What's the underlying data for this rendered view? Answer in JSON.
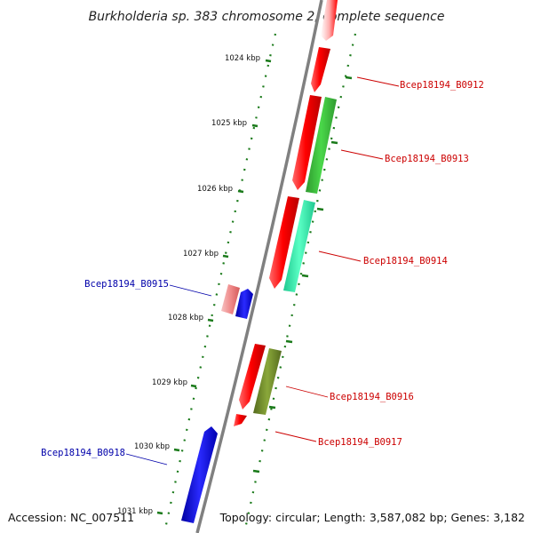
{
  "title": "Burkholderia sp. 383 chromosome 2, complete sequence",
  "footer": {
    "accession": "Accession: NC_007511",
    "topology": "Topology: circular; Length: 3,587,082 bp; Genes: 3,182"
  },
  "colors": {
    "backbone": "#808080",
    "tick": "#1a7a1a",
    "label_forward": "#cc0000",
    "label_reverse": "#0000aa"
  },
  "ruler": [
    {
      "label": "1024 kbp"
    },
    {
      "label": "1025 kbp"
    },
    {
      "label": "1026 kbp"
    },
    {
      "label": "1027 kbp"
    },
    {
      "label": "1028 kbp"
    },
    {
      "label": "1029 kbp"
    },
    {
      "label": "1030 kbp"
    },
    {
      "label": "1031 kbp"
    }
  ],
  "gene_labels": [
    {
      "text": "Bcep18194_B0912",
      "strand": "forward"
    },
    {
      "text": "Bcep18194_B0913",
      "strand": "forward"
    },
    {
      "text": "Bcep18194_B0914",
      "strand": "forward"
    },
    {
      "text": "Bcep18194_B0915",
      "strand": "reverse"
    },
    {
      "text": "Bcep18194_B0916",
      "strand": "forward"
    },
    {
      "text": "Bcep18194_B0917",
      "strand": "forward"
    },
    {
      "text": "Bcep18194_B0918",
      "strand": "reverse"
    }
  ]
}
